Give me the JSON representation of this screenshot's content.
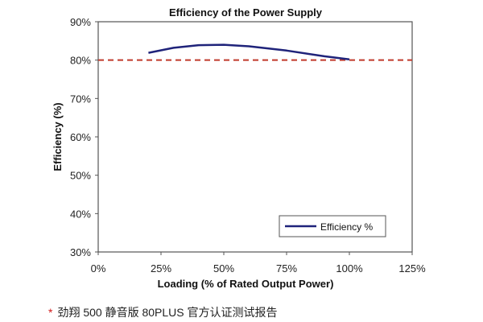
{
  "chart_data": {
    "type": "line",
    "title": "Efficiency of the Power Supply",
    "xlabel": "Loading (% of Rated Output Power)",
    "ylabel": "Efficiency (%)",
    "xlim": [
      0,
      125
    ],
    "ylim": [
      30,
      90
    ],
    "x_ticks": [
      0,
      25,
      50,
      75,
      100,
      125
    ],
    "x_tick_labels": [
      "0%",
      "25%",
      "50%",
      "75%",
      "100%",
      "125%"
    ],
    "y_ticks": [
      30,
      40,
      50,
      60,
      70,
      80,
      90
    ],
    "y_tick_labels": [
      "30%",
      "40%",
      "50%",
      "60%",
      "70%",
      "80%",
      "90%"
    ],
    "grid": false,
    "legend_position": "bottom-right",
    "series": [
      {
        "name": "Efficiency %",
        "color": "#1f237a",
        "x": [
          20,
          30,
          40,
          50,
          60,
          75,
          90,
          100
        ],
        "y": [
          81.9,
          83.2,
          83.9,
          84.0,
          83.6,
          82.5,
          81.0,
          80.2
        ]
      }
    ],
    "reference_line": {
      "y": 80,
      "color": "#c0392b",
      "style": "dashed"
    }
  },
  "caption": {
    "marker": "*",
    "text": "劲翔 500 静音版 80PLUS 官方认证测试报告"
  }
}
